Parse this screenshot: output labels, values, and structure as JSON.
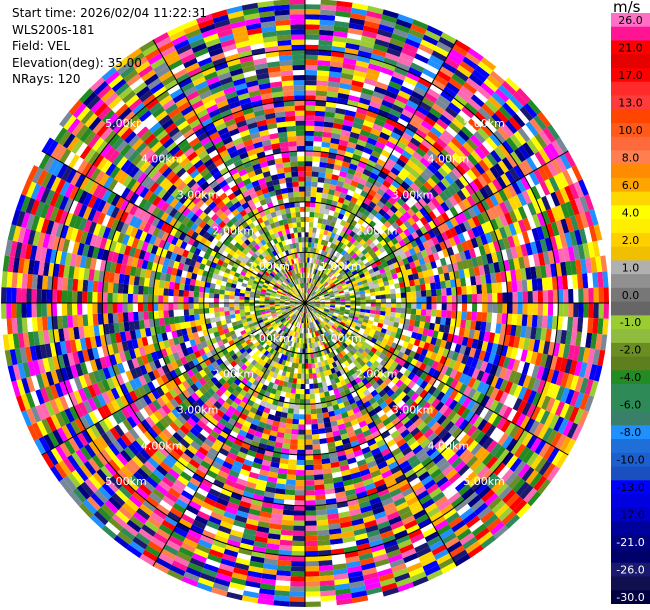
{
  "info": {
    "start_time": "Start time: 2026/02/04 11:22:31",
    "instrument": "WLS200s-181",
    "field": "Field: VEL",
    "elevation": "Elevation(deg): 35.00",
    "nrays": "NRays: 120"
  },
  "colorbar": {
    "unit": "m/s",
    "levels": [
      {
        "label": "26.0",
        "color": "#ff6ec7"
      },
      {
        "label": "",
        "color": "#ff1493"
      },
      {
        "label": "21.0",
        "color": "#ff0000"
      },
      {
        "label": "",
        "color": "#e60000"
      },
      {
        "label": "17.0",
        "color": "#ff0000"
      },
      {
        "label": "",
        "color": "#ff2a2a"
      },
      {
        "label": "13.0",
        "color": "#ff3c3c"
      },
      {
        "label": "",
        "color": "#ff4500"
      },
      {
        "label": "10.0",
        "color": "#ff5a1a"
      },
      {
        "label": "",
        "color": "#ff6a3c"
      },
      {
        "label": "8.0",
        "color": "#ff7f50"
      },
      {
        "label": "",
        "color": "#ff8c00"
      },
      {
        "label": "6.0",
        "color": "#ffa500"
      },
      {
        "label": "",
        "color": "#ffd700"
      },
      {
        "label": "4.0",
        "color": "#ffff00"
      },
      {
        "label": "",
        "color": "#ffee00"
      },
      {
        "label": "2.0",
        "color": "#ffd000"
      },
      {
        "label": "",
        "color": "#f0c000"
      },
      {
        "label": "1.0",
        "color": "#b0b0b0"
      },
      {
        "label": "",
        "color": "#909090"
      },
      {
        "label": "0.0",
        "color": "#777777"
      },
      {
        "label": "",
        "color": "#666666"
      },
      {
        "label": "-1.0",
        "color": "#9acd32"
      },
      {
        "label": "",
        "color": "#8fbc3f"
      },
      {
        "label": "-2.0",
        "color": "#6b8e23"
      },
      {
        "label": "",
        "color": "#5f7f1f"
      },
      {
        "label": "-4.0",
        "color": "#228b22"
      },
      {
        "label": "",
        "color": "#2e8b57"
      },
      {
        "label": "-6.0",
        "color": "#2e8b57"
      },
      {
        "label": "",
        "color": "#3a7f6a"
      },
      {
        "label": "-8.0",
        "color": "#1e90ff"
      },
      {
        "label": "",
        "color": "#1e6fd9"
      },
      {
        "label": "-10.0",
        "color": "#1c5fcf"
      },
      {
        "label": "",
        "color": "#1a4fbf"
      },
      {
        "label": "-13.0",
        "color": "#0000ff"
      },
      {
        "label": "",
        "color": "#0000e0"
      },
      {
        "label": "-17.0",
        "color": "#0000cd"
      },
      {
        "label": "",
        "color": "#00009a"
      },
      {
        "label": "-21.0",
        "color": "#000080"
      },
      {
        "label": "",
        "color": "#00006a"
      },
      {
        "label": "-26.0",
        "color": "#191970"
      },
      {
        "label": "",
        "color": "#101050"
      },
      {
        "label": "-30.0",
        "color": "#000040"
      }
    ]
  },
  "chart_data": {
    "type": "heatmap",
    "projection": "polar PPI",
    "field": "VEL",
    "units": "m/s",
    "nrays": 120,
    "elevation_deg": 35.0,
    "range_rings_km": [
      1.0,
      2.0,
      3.0,
      4.0,
      5.0
    ],
    "range_ring_labels": [
      "1.00km",
      "2.00km",
      "3.00km",
      "4.00km",
      "5.00km"
    ],
    "vmin": -30.0,
    "vmax": 30.0,
    "palette": [
      "#ff1493",
      "#ff0000",
      "#ff4500",
      "#ff7f50",
      "#ffa500",
      "#ffff00",
      "#ffd700",
      "#778899",
      "#9acd32",
      "#6b8e23",
      "#228b22",
      "#2e8b57",
      "#1e90ff",
      "#0000ff",
      "#0000cd",
      "#000080",
      "#191970",
      "#ff00ff",
      "#ff69b4",
      "#ffffff"
    ]
  }
}
